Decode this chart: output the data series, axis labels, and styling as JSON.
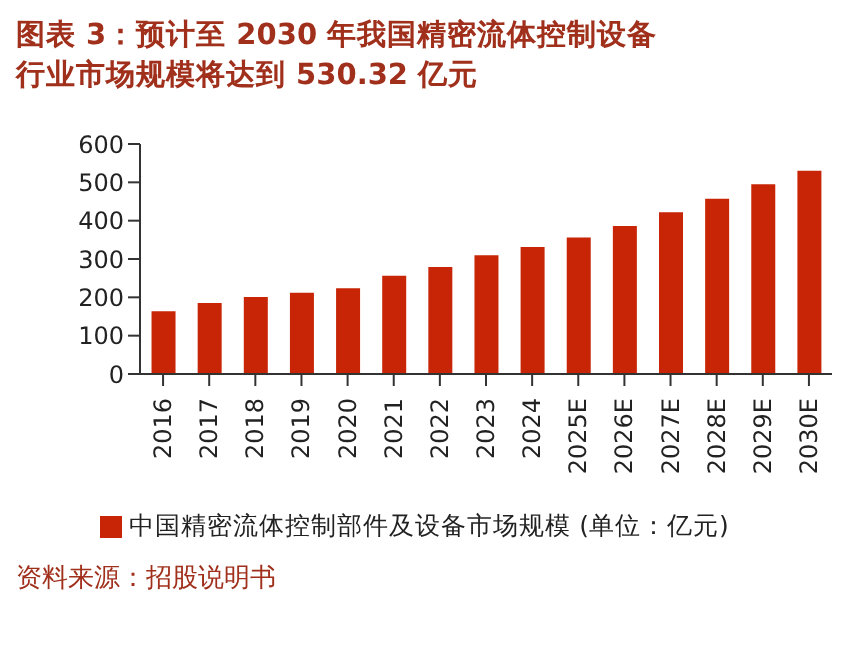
{
  "chart_data": {
    "type": "bar",
    "title": "图表 3：预计至 2030 年我国精密流体控制设备行业市场规模将达到 530.32 亿元",
    "categories": [
      "2016",
      "2017",
      "2018",
      "2019",
      "2020",
      "2021",
      "2022",
      "2023",
      "2024",
      "2025E",
      "2026E",
      "2027E",
      "2028E",
      "2029E",
      "2030E"
    ],
    "series": [
      {
        "name": "中国精密流体控制部件及设备市场规模 (单位：亿元)",
        "color": "#c82506",
        "values": [
          164,
          185,
          201,
          212,
          224,
          256,
          279,
          310,
          331,
          356,
          386,
          422,
          457,
          495,
          530
        ]
      }
    ],
    "ylim": [
      0,
      600
    ],
    "yticks": [
      0,
      100,
      200,
      300,
      400,
      500,
      600
    ],
    "grid": false,
    "legend": "bottom",
    "annotations": [
      "资料来源：招股说明书"
    ]
  }
}
